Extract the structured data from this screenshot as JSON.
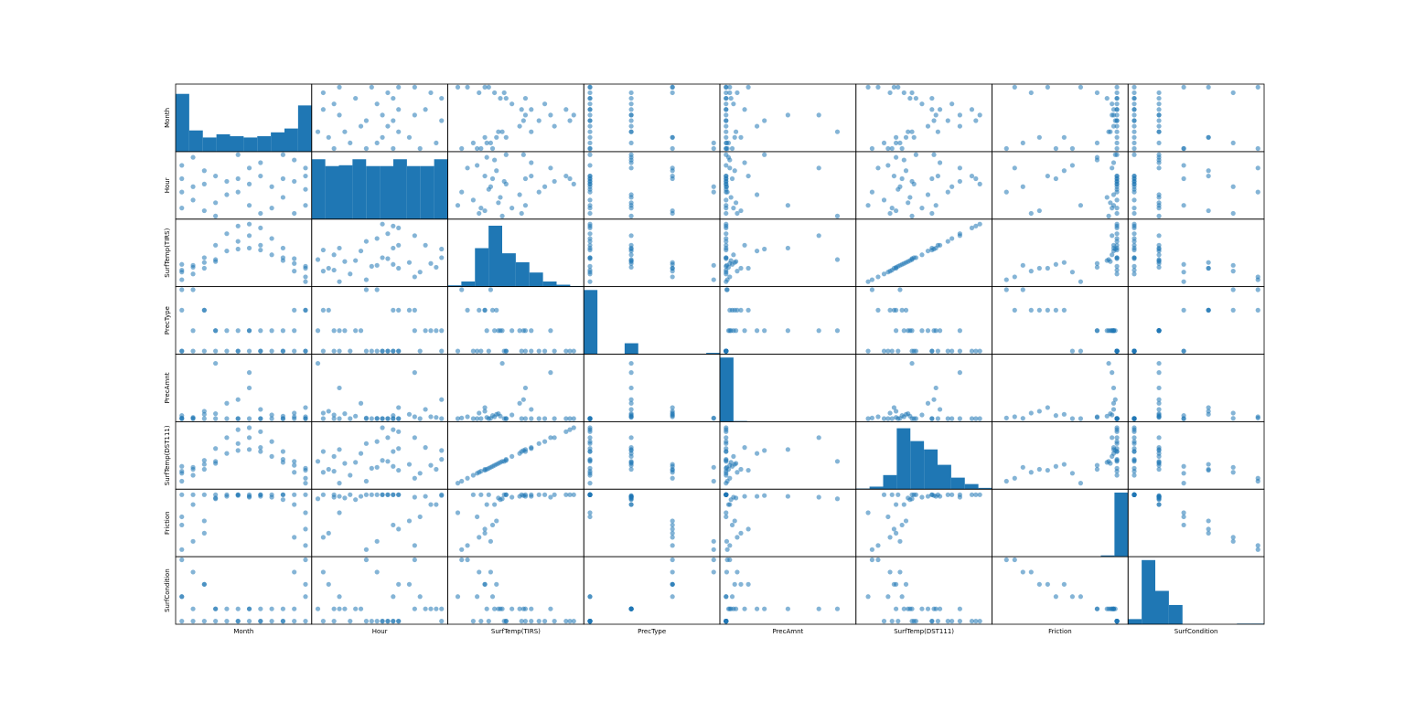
{
  "chart_data": {
    "type": "scatter_matrix",
    "color": "#1f77b4",
    "variables": [
      {
        "name": "Month",
        "lim": [
          1,
          12
        ],
        "hist": {
          "bins": [
            1,
            2.1,
            3.2,
            4.3,
            5.4,
            6.5,
            7.6,
            8.7,
            9.8,
            10.9,
            12
          ],
          "counts": [
            90,
            33,
            22,
            27,
            24,
            22,
            24,
            30,
            36,
            72
          ],
          "ylim": [
            0,
            100
          ]
        }
      },
      {
        "name": "Hour",
        "lim": [
          0,
          23
        ],
        "hist": {
          "bins": [
            0,
            2.3,
            4.6,
            6.9,
            9.2,
            11.5,
            13.8,
            16.1,
            18.4,
            20.7,
            23
          ],
          "counts": [
            70,
            62,
            63,
            70,
            62,
            62,
            70,
            62,
            62,
            70
          ],
          "ylim": [
            0,
            75
          ]
        }
      },
      {
        "name": "SurfTemp(TIRS)",
        "lim": [
          -22,
          42
        ],
        "hist": {
          "bins": [
            -22,
            -15.6,
            -9.2,
            -2.8,
            3.6,
            10,
            16.4,
            22.8,
            29.2,
            35.6,
            42
          ],
          "counts": [
            2,
            8,
            60,
            95,
            52,
            38,
            22,
            8,
            3,
            1
          ],
          "ylim": [
            0,
            100
          ]
        }
      },
      {
        "name": "PrecType",
        "lim": [
          0,
          3
        ],
        "hist": {
          "bins": [
            0,
            0.3,
            0.6,
            0.9,
            1.2,
            1.5,
            1.8,
            2.1,
            2.4,
            2.7,
            3
          ],
          "counts": [
            100,
            0,
            0,
            17,
            0,
            0,
            0,
            0,
            0,
            2
          ],
          "ylim": [
            0,
            100
          ]
        }
      },
      {
        "name": "PrecAmnt",
        "lim": [
          0,
          10
        ],
        "hist": {
          "bins": [
            0,
            1,
            2,
            3,
            4,
            5,
            6,
            7,
            8,
            9,
            10
          ],
          "counts": [
            100,
            1,
            0,
            0,
            0,
            0,
            0,
            0,
            0,
            0
          ],
          "ylim": [
            0,
            100
          ]
        }
      },
      {
        "name": "SurfTemp(DST111)",
        "lim": [
          -22,
          40
        ],
        "hist": {
          "bins": [
            -22,
            -15.8,
            -9.6,
            -3.4,
            2.8,
            9,
            15.2,
            21.4,
            27.6,
            33.8,
            40
          ],
          "counts": [
            1,
            4,
            22,
            95,
            75,
            62,
            38,
            18,
            8,
            2
          ],
          "ylim": [
            0,
            100
          ]
        }
      },
      {
        "name": "Friction",
        "lim": [
          0.1,
          0.85
        ],
        "hist": {
          "bins": [
            0.1,
            0.175,
            0.25,
            0.325,
            0.4,
            0.475,
            0.55,
            0.625,
            0.7,
            0.775,
            0.85
          ],
          "counts": [
            0,
            0,
            0,
            0,
            0,
            0,
            0,
            0,
            2,
            100
          ],
          "ylim": [
            0,
            100
          ]
        }
      },
      {
        "name": "SurfCondition",
        "lim": [
          1,
          6
        ],
        "hist": {
          "bins": [
            1,
            1.5,
            2,
            2.5,
            3,
            3.5,
            4,
            4.5,
            5,
            5.5,
            6
          ],
          "counts": [
            8,
            100,
            52,
            30,
            0,
            0,
            0,
            0,
            1,
            1
          ],
          "ylim": [
            0,
            100
          ]
        }
      }
    ],
    "rows": [
      [
        1,
        3,
        -8,
        0,
        0,
        -7,
        0.82,
        1
      ],
      [
        1,
        14,
        -2,
        2,
        0.5,
        -2,
        0.45,
        3
      ],
      [
        2,
        6,
        -12,
        0,
        0,
        -11,
        0.82,
        1
      ],
      [
        2,
        22,
        -5,
        1,
        0.2,
        -5,
        0.7,
        2
      ],
      [
        3,
        12,
        5,
        0,
        0,
        4,
        0.82,
        1
      ],
      [
        3,
        2,
        -6,
        2,
        1.2,
        -5,
        0.35,
        4
      ],
      [
        4,
        15,
        18,
        0,
        0,
        16,
        0.82,
        1
      ],
      [
        4,
        5,
        1,
        1,
        0.8,
        1,
        0.78,
        2
      ],
      [
        5,
        13,
        30,
        0,
        0,
        27,
        0.82,
        1
      ],
      [
        5,
        8,
        12,
        1,
        2.5,
        11,
        0.8,
        2
      ],
      [
        6,
        14,
        38,
        0,
        0,
        35,
        0.82,
        1
      ],
      [
        6,
        23,
        14,
        1,
        3.1,
        14,
        0.81,
        2
      ],
      [
        7,
        12,
        40,
        0,
        0,
        37,
        0.82,
        1
      ],
      [
        7,
        4,
        15,
        1,
        5,
        15,
        0.8,
        2
      ],
      [
        8,
        15,
        36,
        0,
        0,
        33,
        0.82,
        1
      ],
      [
        8,
        20,
        18,
        1,
        1.5,
        17,
        0.8,
        2
      ],
      [
        9,
        11,
        25,
        0,
        0,
        23,
        0.82,
        1
      ],
      [
        9,
        3,
        8,
        1,
        0.6,
        8,
        0.79,
        2
      ],
      [
        10,
        14,
        15,
        0,
        0,
        13,
        0.82,
        1
      ],
      [
        10,
        7,
        2,
        1,
        0.4,
        2,
        0.76,
        2
      ],
      [
        11,
        13,
        4,
        0,
        0,
        3,
        0.82,
        1
      ],
      [
        11,
        1,
        -9,
        2,
        0.9,
        -8,
        0.3,
        5
      ],
      [
        12,
        10,
        -4,
        0,
        0,
        -4,
        0.82,
        1
      ],
      [
        12,
        18,
        -15,
        2,
        0.3,
        -14,
        0.2,
        6
      ],
      [
        12,
        4,
        -20,
        0,
        0,
        -19,
        0.6,
        3
      ],
      [
        1,
        9,
        -18,
        3,
        0.1,
        -17,
        0.15,
        6
      ],
      [
        3,
        17,
        0,
        2,
        0.7,
        0,
        0.5,
        4
      ],
      [
        2,
        11,
        -3,
        3,
        0.05,
        -3,
        0.25,
        5
      ],
      [
        11,
        21,
        -1,
        1,
        0.3,
        -1,
        0.7,
        2
      ],
      [
        1,
        19,
        -10,
        0,
        0,
        -9,
        0.55,
        3
      ],
      [
        6,
        9,
        22,
        0,
        0,
        21,
        0.82,
        1
      ],
      [
        8,
        1,
        13,
        0,
        0,
        13,
        0.82,
        1
      ],
      [
        7,
        18,
        28,
        1,
        7.5,
        27,
        0.79,
        2
      ],
      [
        12,
        15,
        -6,
        2,
        1.8,
        -6,
        0.4,
        4
      ],
      [
        10,
        23,
        5,
        0,
        0,
        5,
        0.82,
        1
      ],
      [
        4,
        0,
        3,
        1,
        9,
        3,
        0.77,
        2
      ]
    ]
  }
}
